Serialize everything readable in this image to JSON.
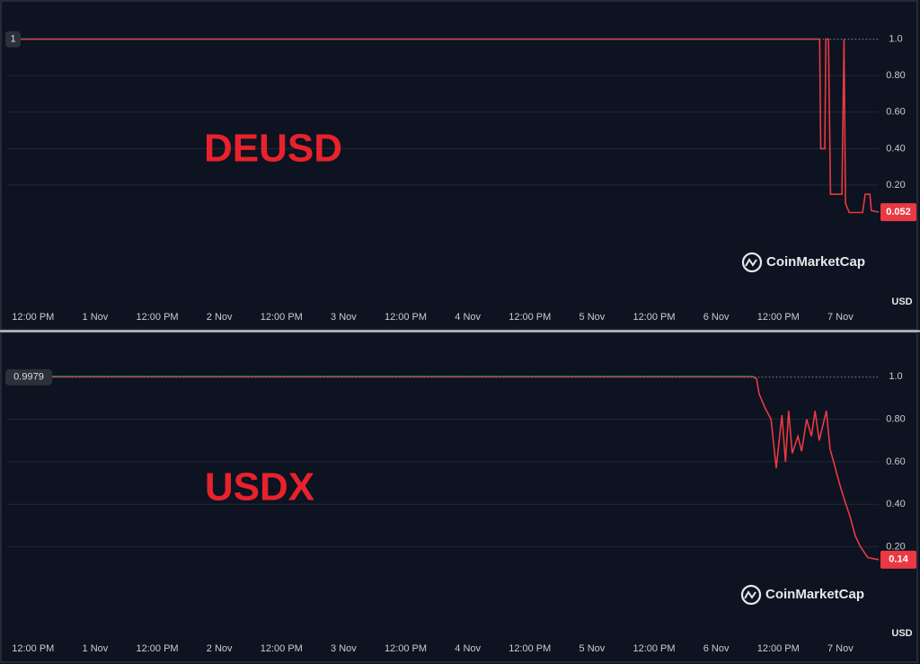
{
  "chart_data": [
    {
      "type": "line",
      "title": "DEUSD",
      "watermark": "CoinMarketCap",
      "y_unit": "USD",
      "x": [
        -5,
        152.0,
        152.2,
        153.0,
        153.2,
        153.7,
        154.1,
        156.3,
        156.7,
        157.0,
        157.7,
        160.3,
        160.8,
        161.7,
        162.0,
        163.4
      ],
      "series": [
        {
          "color": "#ea3943",
          "values": [
            1.0,
            1.0,
            0.4,
            0.4,
            1.0,
            1.0,
            0.15,
            0.15,
            1.0,
            0.1,
            0.05,
            0.05,
            0.15,
            0.15,
            0.06,
            0.052
          ]
        }
      ],
      "baseline": {
        "value": 1,
        "label": "1"
      },
      "above_color": "#16c784",
      "last_value_label": {
        "value": 0.052,
        "label": "0.052"
      },
      "xlim": [
        -5,
        163.4
      ],
      "xticks": [
        {
          "value": 0,
          "label": "12:00 PM"
        },
        {
          "value": 12,
          "label": "1 Nov"
        },
        {
          "value": 24,
          "label": "12:00 PM"
        },
        {
          "value": 36,
          "label": "2 Nov"
        },
        {
          "value": 48,
          "label": "12:00 PM"
        },
        {
          "value": 60,
          "label": "3 Nov"
        },
        {
          "value": 72,
          "label": "12:00 PM"
        },
        {
          "value": 84,
          "label": "4 Nov"
        },
        {
          "value": 96,
          "label": "12:00 PM"
        },
        {
          "value": 108,
          "label": "5 Nov"
        },
        {
          "value": 120,
          "label": "12:00 PM"
        },
        {
          "value": 132,
          "label": "6 Nov"
        },
        {
          "value": 144,
          "label": "12:00 PM"
        },
        {
          "value": 156,
          "label": "7 Nov"
        }
      ],
      "ylim": [
        -0.45,
        1.19
      ],
      "yticks": [
        {
          "value": 1,
          "label": "1.0"
        },
        {
          "value": 0.8,
          "label": "0.80"
        },
        {
          "value": 0.6,
          "label": "0.60"
        },
        {
          "value": 0.4,
          "label": "0.40"
        },
        {
          "value": 0.2,
          "label": "0.20"
        }
      ],
      "grid": true
    },
    {
      "type": "line",
      "title": "USDX",
      "watermark": "CoinMarketCap",
      "y_unit": "USD",
      "x": [
        -5,
        139.1,
        139.8,
        140.3,
        141.5,
        142.6,
        143.6,
        144.7,
        145.4,
        146.0,
        146.7,
        147.8,
        148.5,
        149.5,
        150.4,
        151.1,
        151.9,
        153.3,
        154.0,
        154.7,
        155.8,
        156.8,
        157.9,
        158.9,
        159.9,
        161.3,
        163.4
      ],
      "series": [
        {
          "color": "#ea3943",
          "values": [
            1.0,
            1.0,
            0.99,
            0.92,
            0.85,
            0.8,
            0.57,
            0.82,
            0.6,
            0.84,
            0.64,
            0.72,
            0.65,
            0.8,
            0.72,
            0.84,
            0.7,
            0.84,
            0.66,
            0.6,
            0.5,
            0.42,
            0.34,
            0.25,
            0.2,
            0.15,
            0.14
          ]
        }
      ],
      "baseline": {
        "value": 0.9979,
        "label": "0.9979"
      },
      "above_color": "#16c784",
      "last_value_label": {
        "value": 0.14,
        "label": "0.14"
      },
      "xlim": [
        -5,
        163.4
      ],
      "xticks": [
        {
          "value": 0,
          "label": "12:00 PM"
        },
        {
          "value": 12,
          "label": "1 Nov"
        },
        {
          "value": 24,
          "label": "12:00 PM"
        },
        {
          "value": 36,
          "label": "2 Nov"
        },
        {
          "value": 48,
          "label": "12:00 PM"
        },
        {
          "value": 60,
          "label": "3 Nov"
        },
        {
          "value": 72,
          "label": "12:00 PM"
        },
        {
          "value": 84,
          "label": "4 Nov"
        },
        {
          "value": 96,
          "label": "12:00 PM"
        },
        {
          "value": 108,
          "label": "5 Nov"
        },
        {
          "value": 120,
          "label": "12:00 PM"
        },
        {
          "value": 132,
          "label": "6 Nov"
        },
        {
          "value": 144,
          "label": "12:00 PM"
        },
        {
          "value": 156,
          "label": "7 Nov"
        }
      ],
      "ylim": [
        -0.22,
        1.2
      ],
      "yticks": [
        {
          "value": 1,
          "label": "1.0"
        },
        {
          "value": 0.8,
          "label": "0.80"
        },
        {
          "value": 0.6,
          "label": "0.60"
        },
        {
          "value": 0.4,
          "label": "0.40"
        },
        {
          "value": 0.2,
          "label": "0.20"
        }
      ],
      "grid": true
    }
  ]
}
